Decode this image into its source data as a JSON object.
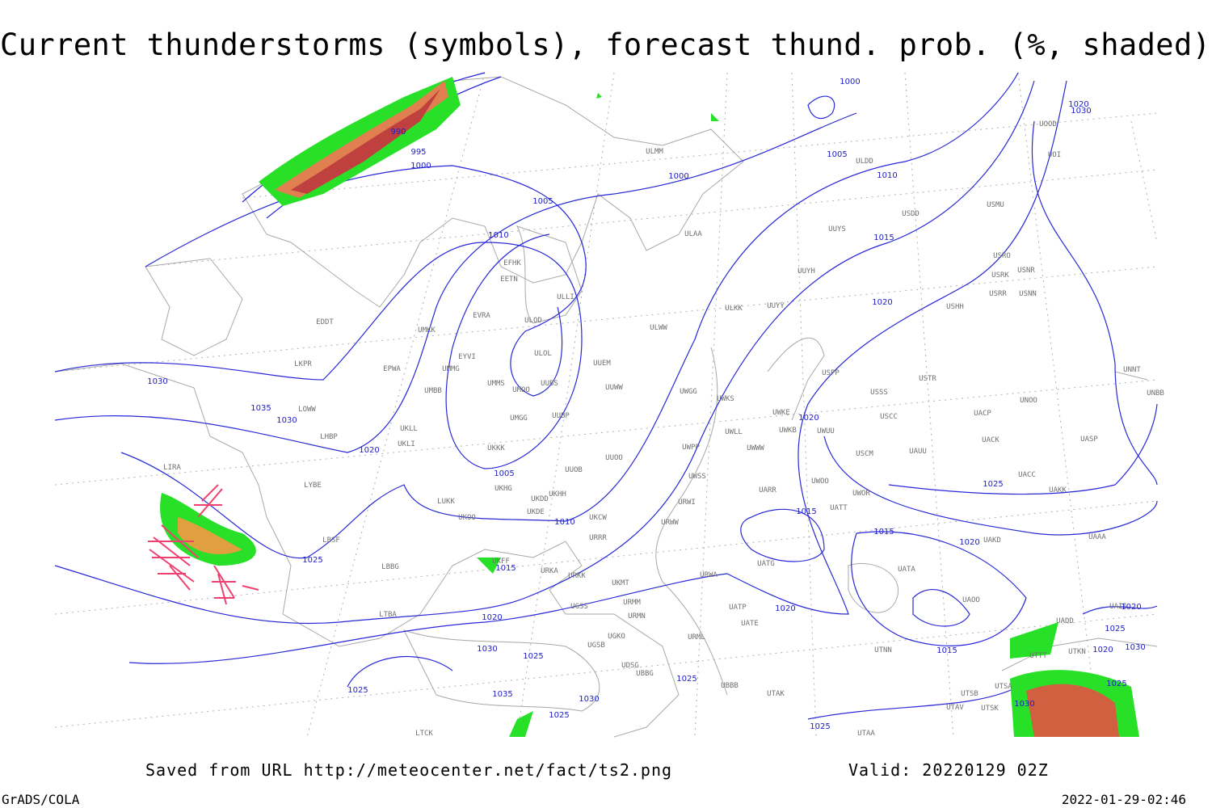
{
  "header": {
    "title": "Current thunderstorms (symbols), forecast thund. prob. (%, shaded)"
  },
  "footer": {
    "source": "Saved from URL http://meteocenter.net/fact/ts2.png",
    "valid": "Valid: 20220129 02Z",
    "software": "GrADS/COLA",
    "timestamp": "2022-01-29-02:46"
  },
  "map": {
    "stations": [
      "ULMM",
      "ULDD",
      "USDD",
      "USMU",
      "ULAA",
      "UUYS",
      "UUYH",
      "USRO",
      "USRK",
      "USNR",
      "USRR",
      "USNN",
      "USHH",
      "ULKK",
      "UUYY",
      "ULWW",
      "UUEM",
      "UUWW",
      "UWGG",
      "UWKS",
      "USPP",
      "USSS",
      "USTR",
      "UNOO",
      "UNNT",
      "UNBB",
      "UWKE",
      "UWKB",
      "UWUU",
      "USCC",
      "UACP",
      "UACK",
      "UASP",
      "UWLL",
      "UWWW",
      "UWPP",
      "USCM",
      "UAUU",
      "UWSS",
      "UACC",
      "UAKK",
      "UARR",
      "UWOO",
      "UWOR",
      "UATT",
      "URWI",
      "URWW",
      "UAKD",
      "UAAA",
      "UATA",
      "UAOO",
      "UATG",
      "URWA",
      "UATP",
      "UATE",
      "URML",
      "UBBB",
      "UTAK",
      "UTNN",
      "UTSA",
      "UTSB",
      "UTAV",
      "UTSK",
      "UTAA",
      "UTTT",
      "UTKN",
      "UAII",
      "UADD",
      "UOOD",
      "UOI",
      "ULOL",
      "UMMS",
      "UMOO",
      "UUBS",
      "UMGG",
      "UUBP",
      "UKKK",
      "UUOO",
      "UUOB",
      "UKHH",
      "UKDD",
      "UKDE",
      "UKHG",
      "UKCW",
      "URRR",
      "UKOO",
      "LUKK",
      "UKLL",
      "UKLI",
      "UMBB",
      "UMMG",
      "EYVI",
      "EPWA",
      "UMKK",
      "EVRA",
      "ULOD",
      "ULLI",
      "EETN",
      "EFHK",
      "LKPR",
      "EDDT",
      "LOWW",
      "LHBP",
      "LIRA",
      "LYBE",
      "LBSF",
      "LBBG",
      "UKFF",
      "URKA",
      "URKK",
      "UKMT",
      "UGSS",
      "URMM",
      "URMN",
      "UGKO",
      "UGSB",
      "UDSG",
      "UBBG",
      "LTBA",
      "LTCK"
    ],
    "isobar_labels": [
      990,
      995,
      1000,
      1000,
      1000,
      1005,
      1005,
      1010,
      1010,
      1015,
      1020,
      1030,
      1035,
      1030,
      1020,
      1005,
      1010,
      1015,
      1020,
      1015,
      1020,
      1025,
      1025,
      1015,
      1020,
      1020,
      1030,
      1025,
      1025,
      1030,
      1035,
      1025,
      1025,
      1015,
      1025,
      1025,
      1030,
      1020,
      1020,
      1030,
      1020,
      1025,
      1030
    ]
  }
}
